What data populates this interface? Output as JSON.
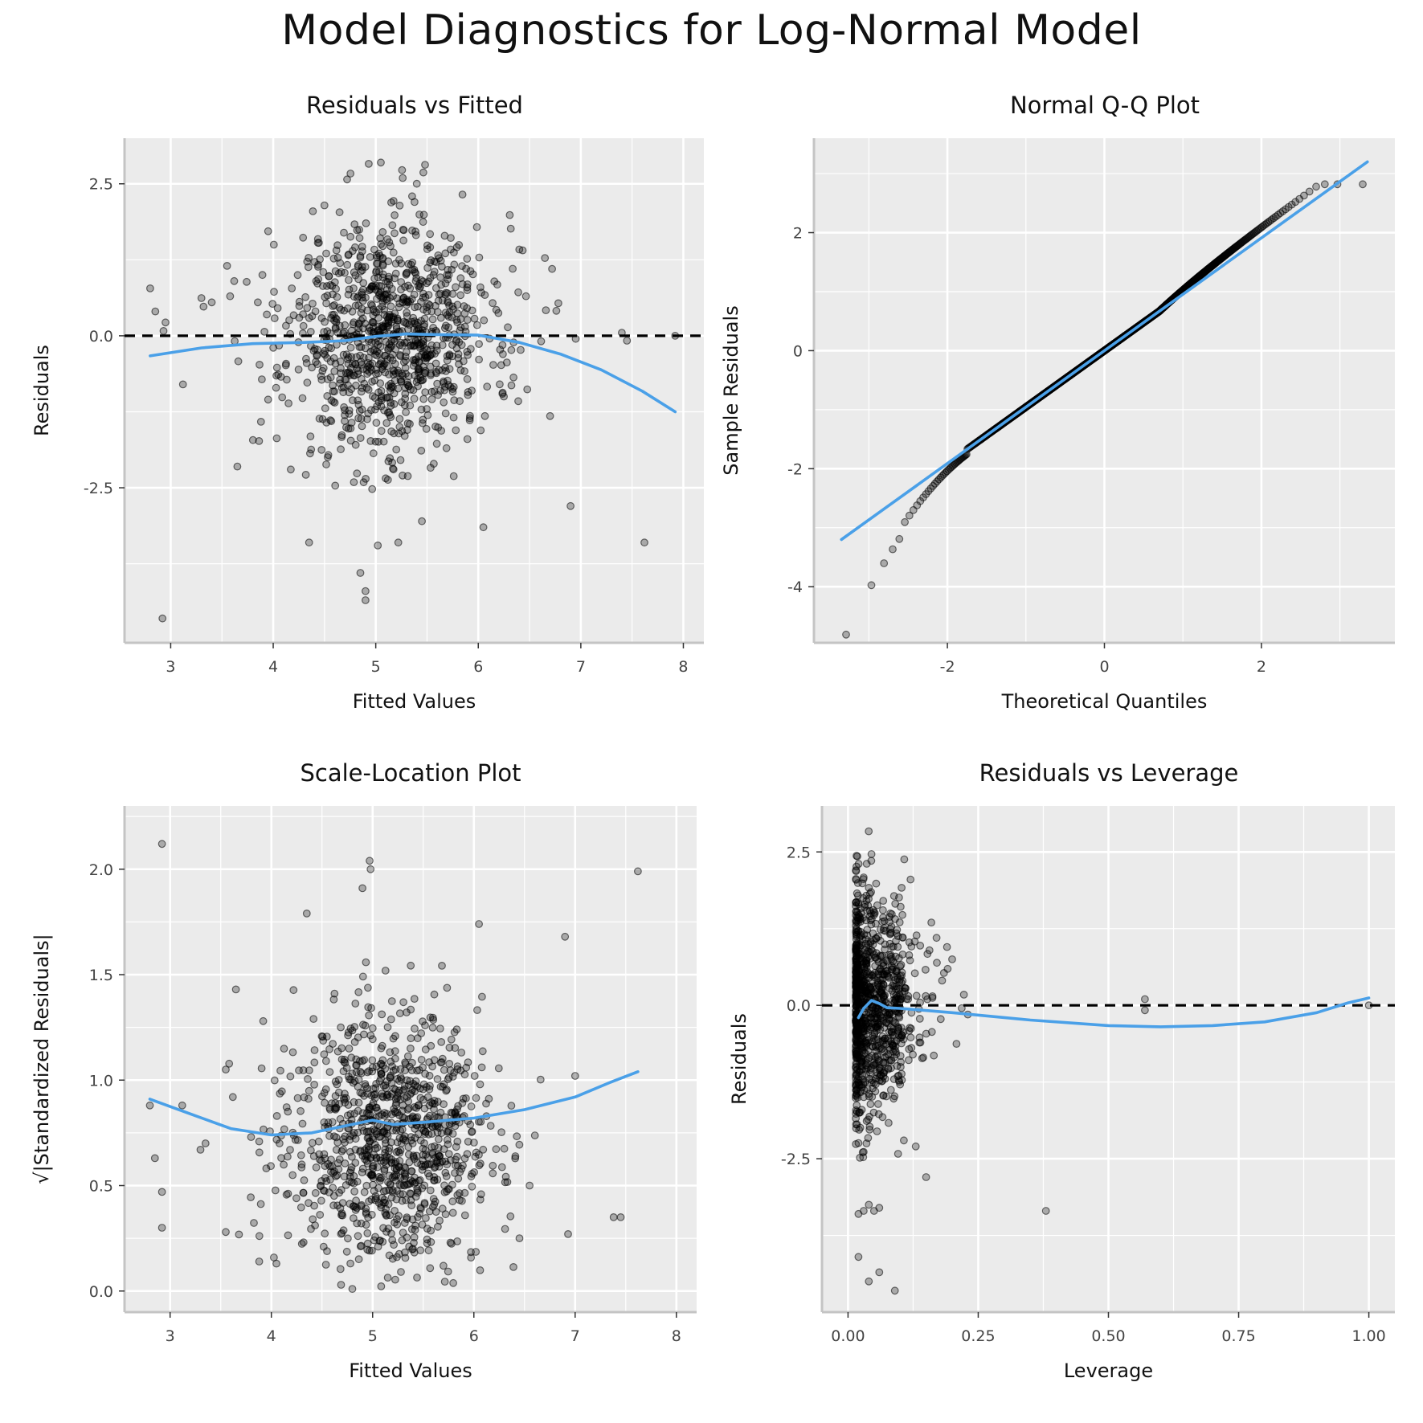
{
  "title": "Model Diagnostics for Log-Normal Model",
  "chart_data": [
    {
      "id": "resid-fitted",
      "type": "scatter",
      "title": "Residuals vs Fitted",
      "xlabel": "Fitted Values",
      "ylabel": "Residuals",
      "xlim": [
        2.55,
        8.2
      ],
      "ylim": [
        -5.05,
        3.25
      ],
      "xticks": [
        3,
        4,
        5,
        6,
        7,
        8
      ],
      "xtick_labels": [
        "3",
        "4",
        "5",
        "6",
        "7",
        "8"
      ],
      "yticks": [
        -2.5,
        0.0,
        2.5
      ],
      "ytick_labels": [
        "-2.5",
        "0.0",
        "2.5"
      ],
      "grid": true,
      "hline": 0,
      "points": {
        "seed": 11,
        "n": 1000,
        "x_center": 5.15,
        "x_sd": 0.5,
        "y_sd": 1.0
      },
      "notable_points": [
        [
          2.8,
          0.78
        ],
        [
          2.85,
          0.4
        ],
        [
          2.93,
          0.08
        ],
        [
          2.95,
          0.22
        ],
        [
          3.12,
          -0.8
        ],
        [
          3.3,
          0.62
        ],
        [
          3.32,
          0.48
        ],
        [
          3.4,
          0.55
        ],
        [
          3.55,
          1.15
        ],
        [
          3.58,
          0.65
        ],
        [
          3.62,
          0.9
        ],
        [
          3.65,
          -2.15
        ],
        [
          3.66,
          -0.42
        ],
        [
          3.85,
          0.55
        ],
        [
          3.95,
          1.72
        ],
        [
          3.95,
          -1.05
        ],
        [
          2.92,
          -4.65
        ],
        [
          4.35,
          -3.4
        ],
        [
          4.85,
          -3.9
        ],
        [
          4.9,
          -4.35
        ],
        [
          4.9,
          -4.2
        ],
        [
          5.02,
          -3.45
        ],
        [
          5.22,
          -3.4
        ],
        [
          5.45,
          -3.05
        ],
        [
          5.4,
          2.5
        ],
        [
          5.05,
          2.85
        ],
        [
          6.05,
          -3.15
        ],
        [
          6.9,
          -2.8
        ],
        [
          6.95,
          -0.05
        ],
        [
          7.4,
          0.05
        ],
        [
          7.45,
          -0.08
        ],
        [
          7.62,
          -3.4
        ],
        [
          7.92,
          0.0
        ],
        [
          6.65,
          1.28
        ],
        [
          6.72,
          1.1
        ],
        [
          6.7,
          -1.32
        ],
        [
          6.4,
          1.42
        ]
      ],
      "smooth": [
        [
          2.8,
          -0.33
        ],
        [
          3.3,
          -0.2
        ],
        [
          3.8,
          -0.13
        ],
        [
          4.3,
          -0.11
        ],
        [
          4.7,
          -0.08
        ],
        [
          5.0,
          -0.01
        ],
        [
          5.3,
          0.03
        ],
        [
          5.6,
          0.02
        ],
        [
          6.0,
          0.01
        ],
        [
          6.4,
          -0.11
        ],
        [
          6.8,
          -0.3
        ],
        [
          7.2,
          -0.56
        ],
        [
          7.6,
          -0.91
        ],
        [
          7.92,
          -1.25
        ]
      ]
    },
    {
      "id": "qq",
      "type": "scatter",
      "title": "Normal Q-Q Plot",
      "xlabel": "Theoretical Quantiles",
      "ylabel": "Sample Residuals",
      "xlim": [
        -3.7,
        3.7
      ],
      "ylim": [
        -4.95,
        3.6
      ],
      "xticks": [
        -2,
        0,
        2
      ],
      "xtick_labels": [
        "-2",
        "0",
        "2"
      ],
      "yticks": [
        -4,
        -2,
        0,
        2
      ],
      "ytick_labels": [
        "-4",
        "-2",
        "0",
        "2"
      ],
      "grid": true,
      "qq": {
        "n": 1000
      },
      "ref_line": [
        [
          -3.35,
          -3.2
        ],
        [
          3.35,
          3.2
        ]
      ]
    },
    {
      "id": "scale-location",
      "type": "scatter",
      "title": "Scale-Location Plot",
      "xlabel": "Fitted Values",
      "ylabel": "√|Standardized Residuals|",
      "xlim": [
        2.55,
        8.2
      ],
      "ylim": [
        -0.1,
        2.3
      ],
      "xticks": [
        3,
        4,
        5,
        6,
        7,
        8
      ],
      "xtick_labels": [
        "3",
        "4",
        "5",
        "6",
        "7",
        "8"
      ],
      "yticks": [
        0.0,
        0.5,
        1.0,
        1.5,
        2.0
      ],
      "ytick_labels": [
        "0.0",
        "0.5",
        "1.0",
        "1.5",
        "2.0"
      ],
      "grid": true,
      "points": {
        "seed": 23,
        "n": 1000,
        "x_center": 5.15,
        "x_sd": 0.5
      },
      "notable_points": [
        [
          2.92,
          2.12
        ],
        [
          2.8,
          0.88
        ],
        [
          2.85,
          0.63
        ],
        [
          2.92,
          0.47
        ],
        [
          2.92,
          0.3
        ],
        [
          3.12,
          0.88
        ],
        [
          3.3,
          0.67
        ],
        [
          3.35,
          0.7
        ],
        [
          3.55,
          1.05
        ],
        [
          3.55,
          0.28
        ],
        [
          3.62,
          0.92
        ],
        [
          3.65,
          1.43
        ],
        [
          3.8,
          0.73
        ],
        [
          3.88,
          0.14
        ],
        [
          3.92,
          1.28
        ],
        [
          4.05,
          0.13
        ],
        [
          4.35,
          1.79
        ],
        [
          4.97,
          2.04
        ],
        [
          4.98,
          2.0
        ],
        [
          4.9,
          1.91
        ],
        [
          6.05,
          1.74
        ],
        [
          6.45,
          0.25
        ],
        [
          6.55,
          0.5
        ],
        [
          6.9,
          1.68
        ],
        [
          6.93,
          0.27
        ],
        [
          7.0,
          1.02
        ],
        [
          7.38,
          0.35
        ],
        [
          7.45,
          0.35
        ],
        [
          7.62,
          1.99
        ],
        [
          4.8,
          0.01
        ]
      ],
      "smooth": [
        [
          2.8,
          0.91
        ],
        [
          3.2,
          0.84
        ],
        [
          3.6,
          0.77
        ],
        [
          4.0,
          0.74
        ],
        [
          4.4,
          0.75
        ],
        [
          4.8,
          0.79
        ],
        [
          5.0,
          0.81
        ],
        [
          5.2,
          0.79
        ],
        [
          5.5,
          0.8
        ],
        [
          6.0,
          0.82
        ],
        [
          6.5,
          0.86
        ],
        [
          7.0,
          0.92
        ],
        [
          7.35,
          0.99
        ],
        [
          7.62,
          1.04
        ]
      ]
    },
    {
      "id": "resid-leverage",
      "type": "scatter",
      "title": "Residuals vs Leverage",
      "xlabel": "Leverage",
      "ylabel": "Residuals",
      "xlim": [
        -0.05,
        1.05
      ],
      "ylim": [
        -5.0,
        3.25
      ],
      "xticks": [
        0.0,
        0.25,
        0.5,
        0.75,
        1.0
      ],
      "xtick_labels": [
        "0.00",
        "0.25",
        "0.50",
        "0.75",
        "1.00"
      ],
      "yticks": [
        -2.5,
        0.0,
        2.5
      ],
      "ytick_labels": [
        "-2.5",
        "0.0",
        "2.5"
      ],
      "grid": true,
      "hline": 0,
      "points": {
        "seed": 37,
        "n": 1000
      },
      "notable_points": [
        [
          0.02,
          -4.1
        ],
        [
          0.04,
          -4.5
        ],
        [
          0.06,
          -4.35
        ],
        [
          0.09,
          -4.65
        ],
        [
          0.02,
          -3.4
        ],
        [
          0.03,
          -3.35
        ],
        [
          0.04,
          -3.25
        ],
        [
          0.05,
          -3.35
        ],
        [
          0.06,
          -3.3
        ],
        [
          0.38,
          -3.35
        ],
        [
          0.57,
          0.1
        ],
        [
          0.57,
          -0.08
        ],
        [
          1.0,
          0.0
        ],
        [
          0.15,
          -2.8
        ],
        [
          0.13,
          -2.3
        ],
        [
          0.12,
          2.05
        ],
        [
          0.17,
          1.1
        ],
        [
          0.2,
          0.75
        ],
        [
          0.23,
          -0.15
        ],
        [
          0.16,
          1.35
        ],
        [
          0.19,
          0.95
        ]
      ],
      "smooth": [
        [
          0.02,
          -0.2
        ],
        [
          0.03,
          -0.05
        ],
        [
          0.045,
          0.08
        ],
        [
          0.06,
          0.03
        ],
        [
          0.075,
          -0.04
        ],
        [
          0.1,
          -0.05
        ],
        [
          0.2,
          -0.12
        ],
        [
          0.35,
          -0.24
        ],
        [
          0.5,
          -0.33
        ],
        [
          0.6,
          -0.35
        ],
        [
          0.7,
          -0.33
        ],
        [
          0.8,
          -0.27
        ],
        [
          0.9,
          -0.12
        ],
        [
          0.96,
          0.04
        ],
        [
          1.0,
          0.12
        ]
      ]
    }
  ]
}
